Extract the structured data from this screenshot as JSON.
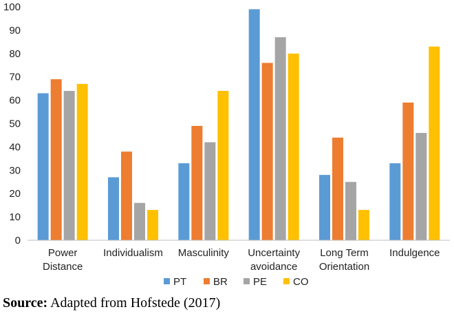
{
  "chart_data": {
    "type": "bar",
    "categories": [
      [
        "Power",
        "Distance"
      ],
      [
        "Individualism"
      ],
      [
        "Masculinity"
      ],
      [
        "Uncertainty",
        "avoidance"
      ],
      [
        "Long Term",
        "Orientation"
      ],
      [
        "Indulgence"
      ]
    ],
    "series": [
      {
        "name": "PT",
        "color": "#5B9BD5",
        "values": [
          63,
          27,
          33,
          99,
          28,
          33
        ]
      },
      {
        "name": "BR",
        "color": "#ED7D31",
        "values": [
          69,
          38,
          49,
          76,
          44,
          59
        ]
      },
      {
        "name": "PE",
        "color": "#A5A5A5",
        "values": [
          64,
          16,
          42,
          87,
          25,
          46
        ]
      },
      {
        "name": "CO",
        "color": "#FFC000",
        "values": [
          67,
          13,
          64,
          80,
          13,
          83
        ]
      }
    ],
    "ylim": [
      0,
      100
    ],
    "yticks": [
      0,
      10,
      20,
      30,
      40,
      50,
      60,
      70,
      80,
      90,
      100
    ],
    "grid": false,
    "legend": "bottom"
  },
  "source": {
    "label": "Source:",
    "text": "Adapted from Hofstede (2017)"
  }
}
